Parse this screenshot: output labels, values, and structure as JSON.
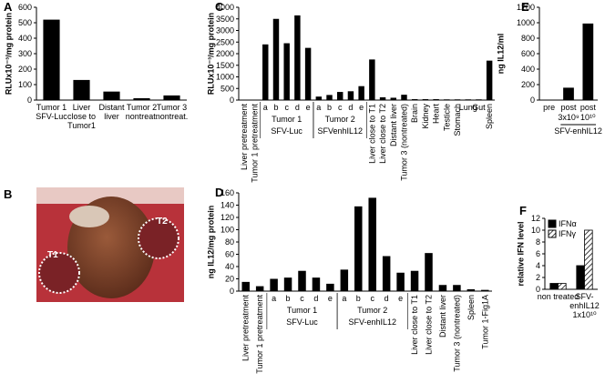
{
  "chart_data": [
    {
      "type": "bar",
      "panel_label": "A",
      "y_label": "RLUx10⁻³/mg protein",
      "categories": [
        [
          "Tumor 1",
          "SFV-Luc"
        ],
        [
          "Liver",
          "close to",
          "Tumor1"
        ],
        [
          "Distant",
          "liver"
        ],
        [
          "Tumor 2",
          "nontreat."
        ],
        [
          "Tumor 3",
          "nontreat."
        ]
      ],
      "values": [
        520,
        130,
        55,
        12,
        30
      ],
      "color": "#000000",
      "ylim": [
        0,
        600
      ],
      "yticks": [
        0,
        100,
        200,
        300,
        400,
        500,
        600
      ]
    },
    {
      "type": "bar",
      "panel_label": "C",
      "y_label": "RLUx10⁻³/mg protein",
      "categories": [
        "Liver pretreatment",
        "Tumor 1 pretreatment",
        "a",
        "b",
        "c",
        "d",
        "e",
        "a",
        "b",
        "c",
        "d",
        "e",
        "Liver close to T1",
        "Liver close to T2",
        "Distant liver",
        "Tumor 3 (nontreated)",
        "Brain",
        "Kidney",
        "Heart",
        "Testicle",
        "Stomach",
        "Lung",
        "Gut",
        "Spleen"
      ],
      "values": [
        0,
        0,
        2400,
        3500,
        2450,
        3650,
        2250,
        150,
        220,
        350,
        380,
        600,
        1750,
        120,
        100,
        230,
        40,
        40,
        40,
        30,
        30,
        30,
        30,
        1700
      ],
      "groups": [
        {
          "label": "Tumor 1",
          "sublabel": "SFV-Luc"
        },
        {
          "label": "Tumor 2",
          "sublabel": "SFVenhIL12"
        }
      ],
      "color": "#000000",
      "ylim": [
        0,
        4000
      ],
      "yticks": [
        0,
        500,
        1000,
        1500,
        2000,
        2500,
        3000,
        3500,
        4000
      ]
    },
    {
      "type": "bar",
      "panel_label": "D",
      "y_label": "ng IL12/mg protein",
      "categories": [
        "Liver pretreatment",
        "Tumor 1 pretreatment",
        "a",
        "b",
        "c",
        "d",
        "e",
        "a",
        "b",
        "c",
        "d",
        "e",
        "Liver close to T1",
        "Liver close to T2",
        "Distant liver",
        "Tumor 3 (nontreated)",
        "Spleen",
        "Tumor 1-Fig1A"
      ],
      "values": [
        15,
        8,
        20,
        22,
        33,
        22,
        12,
        35,
        138,
        152,
        57,
        30,
        33,
        62,
        10,
        10,
        3,
        2
      ],
      "groups": [
        {
          "label": "Tumor 1",
          "sublabel": "SFV-Luc"
        },
        {
          "label": "Tumor 2",
          "sublabel": "SFV-enhIL12"
        }
      ],
      "color": "#000000",
      "ylim": [
        0,
        160
      ],
      "yticks": [
        0,
        20,
        40,
        60,
        80,
        100,
        120,
        140,
        160
      ]
    },
    {
      "type": "bar",
      "panel_label": "E",
      "y_label": "ng IL12/ml",
      "categories": [
        "pre",
        "post",
        "post"
      ],
      "sublabels": [
        null,
        "3x10⁹",
        "10¹⁰"
      ],
      "groups": [
        {
          "label": "SFV-enhIL12"
        }
      ],
      "values": [
        5,
        160,
        990
      ],
      "color": "#000000",
      "ylim": [
        0,
        1200
      ],
      "yticks": [
        0,
        200,
        400,
        600,
        800,
        1000,
        1200
      ]
    },
    {
      "type": "grouped_bar",
      "panel_label": "F",
      "y_label": "relative IFN level",
      "categories": [
        [
          "non treated"
        ],
        [
          "SFV-",
          "enhIL12",
          "1x10¹⁰"
        ]
      ],
      "series": [
        {
          "name": "IFNα",
          "color": "#000000",
          "values": [
            1,
            4
          ]
        },
        {
          "name": "IFNγ",
          "color": "#000000",
          "hatch": true,
          "values": [
            1,
            10
          ]
        }
      ],
      "legend": "top-left",
      "ylim": [
        0,
        12
      ],
      "yticks": [
        0,
        2,
        4,
        6,
        8,
        10,
        12
      ]
    }
  ],
  "photo": {
    "panel_label": "B",
    "markers": [
      "T1",
      "T2"
    ]
  }
}
